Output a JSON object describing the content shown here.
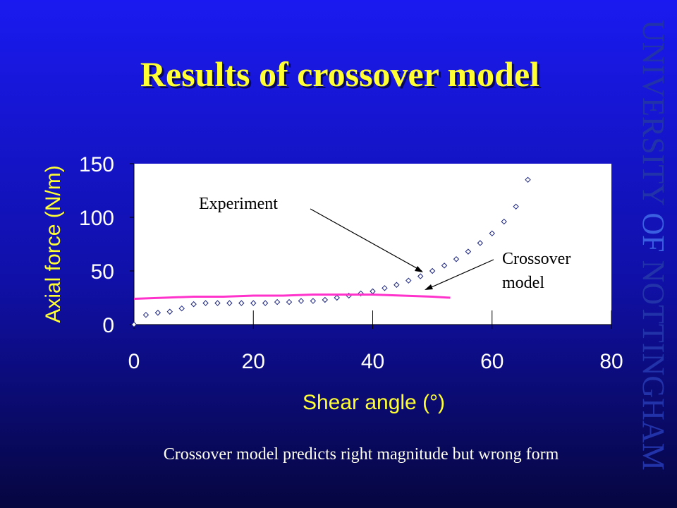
{
  "logo": [
    "UNIVERSITY",
    "OF",
    "NOTTINGHAM"
  ],
  "chart_data": {
    "type": "scatter-line",
    "title": "Results of crossover model",
    "x_label": "Shear angle (°)",
    "y_label": "Axial force (N/m)",
    "xlim": [
      0,
      80
    ],
    "xticks": [
      0,
      20,
      40,
      60,
      80
    ],
    "ylim": [
      0,
      150
    ],
    "yticks": [
      0,
      50,
      100,
      150
    ],
    "series": [
      {
        "name": "Experiment",
        "color": "#1a237e",
        "style": "markers",
        "x": [
          0,
          2,
          4,
          6,
          8,
          10,
          12,
          14,
          16,
          18,
          20,
          22,
          24,
          26,
          28,
          30,
          32,
          34,
          36,
          38,
          40,
          42,
          44,
          46,
          48,
          50,
          52,
          54,
          56,
          58,
          60,
          62,
          64,
          66
        ],
        "values": [
          0,
          9,
          11,
          12,
          15,
          19,
          20,
          20,
          20,
          20,
          20,
          20,
          21,
          21,
          22,
          22,
          23,
          25,
          27,
          29,
          31,
          34,
          37,
          41,
          45,
          50,
          55,
          61,
          68,
          76,
          85,
          96,
          110,
          135
        ]
      },
      {
        "name": "Crossover model",
        "color": "#ff33cc",
        "style": "line",
        "x": [
          0,
          5,
          10,
          15,
          20,
          25,
          30,
          35,
          40,
          45,
          50,
          53
        ],
        "values": [
          24,
          25,
          26,
          26,
          27,
          27,
          28,
          28,
          28,
          27,
          26,
          25
        ]
      }
    ],
    "caption": "Crossover model predicts right magnitude but wrong form"
  }
}
